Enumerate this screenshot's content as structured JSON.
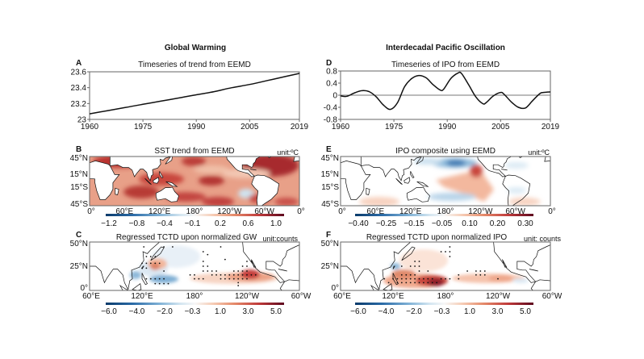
{
  "figure": {
    "column_titles": [
      "Global Warming",
      "Interdecadal Pacific Oscillation"
    ]
  },
  "chart_data": [
    {
      "id": "A",
      "type": "line",
      "panel_label": "A",
      "title": "Timeseries of trend from EEMD",
      "xlabel": "",
      "ylabel": "",
      "xlim": [
        1960,
        2019
      ],
      "ylim": [
        23.0,
        23.6
      ],
      "xticks": [
        1960,
        1975,
        1990,
        2005,
        2019
      ],
      "yticks": [
        "23",
        "23.2",
        "23.4",
        "23.6"
      ],
      "ytick_values": [
        23.0,
        23.2,
        23.4,
        23.6
      ],
      "grid": false,
      "series": [
        {
          "name": "trend",
          "x": [
            1960,
            1965,
            1970,
            1975,
            1980,
            1985,
            1990,
            1995,
            2000,
            2005,
            2010,
            2015,
            2019
          ],
          "values": [
            23.07,
            23.11,
            23.15,
            23.19,
            23.23,
            23.27,
            23.31,
            23.35,
            23.4,
            23.44,
            23.49,
            23.54,
            23.58
          ]
        }
      ]
    },
    {
      "id": "D",
      "type": "line",
      "panel_label": "D",
      "title": "Timeseries of IPO from EEMD",
      "xlabel": "",
      "ylabel": "",
      "xlim": [
        1960,
        2019
      ],
      "ylim": [
        -0.8,
        0.8
      ],
      "xticks": [
        1960,
        1975,
        1990,
        2005,
        2019
      ],
      "yticks": [
        "0.8",
        "0.4",
        "0",
        "-0.4",
        "-0.8"
      ],
      "ytick_values": [
        0.8,
        0.4,
        0,
        -0.4,
        -0.8
      ],
      "zero_line": true,
      "grid": false,
      "series": [
        {
          "name": "IPO",
          "x": [
            1960,
            1961,
            1962,
            1964,
            1966,
            1968,
            1970,
            1972,
            1974,
            1976,
            1978,
            1980,
            1982,
            1984,
            1986,
            1988,
            1989,
            1991,
            1993,
            1994,
            1996,
            1998,
            2000,
            2001,
            2003,
            2005,
            2006,
            2008,
            2010,
            2012,
            2014,
            2016,
            2017,
            2019
          ],
          "values": [
            -0.02,
            -0.04,
            -0.03,
            0.08,
            0.15,
            0.12,
            -0.05,
            -0.32,
            -0.47,
            -0.25,
            0.28,
            0.55,
            0.65,
            0.58,
            0.35,
            0.17,
            0.2,
            0.55,
            0.73,
            0.72,
            0.35,
            -0.05,
            -0.28,
            -0.24,
            -0.02,
            0.09,
            0.03,
            -0.22,
            -0.4,
            -0.42,
            -0.18,
            0.05,
            0.09,
            0.11
          ]
        }
      ]
    },
    {
      "id": "B",
      "type": "heatmap",
      "panel_label": "B",
      "title": "SST trend from EEMD",
      "unit": "unit:ºC",
      "xticks": [
        "0°",
        "60°E",
        "120°E",
        "180°",
        "120°W",
        "60°W",
        "0°"
      ],
      "yticks": [
        "45°N",
        "15°N",
        "15°S",
        "45°S"
      ],
      "colorbar_ticks": [
        "−1.2",
        "−0.8",
        "−0.4",
        "−0.1",
        "0.2",
        "0.6",
        "1.0"
      ],
      "colorbar_range": [
        -1.2,
        1.2
      ],
      "description": "Global SST warming trend, predominantly positive (red) everywhere, strongest in NW Pacific, North Atlantic, Indian Ocean; slight negative patch in SE Pacific."
    },
    {
      "id": "E",
      "type": "heatmap",
      "panel_label": "E",
      "title": "IPO composite using EEMD",
      "unit": "unit:ºC",
      "xticks": [
        "0°",
        "60°E",
        "120°E",
        "180°",
        "120°W",
        "60°W",
        "0°"
      ],
      "yticks": [
        "45°N",
        "15°N",
        "15°S",
        "45°S"
      ],
      "colorbar_ticks": [
        "−0.40",
        "−0.25",
        "−0.15",
        "−0.05",
        "0.10",
        "0.20",
        "0.30"
      ],
      "colorbar_range": [
        -0.45,
        0.35
      ],
      "description": "IPO horseshoe pattern: warm tropical eastern Pacific wedge, cool North and South Pacific lobes."
    },
    {
      "id": "C",
      "type": "heatmap",
      "panel_label": "C",
      "title": "Regressed TCTD upon normalized GW",
      "unit": "unit:counts",
      "xticks": [
        "60°E",
        "120°E",
        "180°",
        "120°W",
        "60°W"
      ],
      "yticks": [
        "50°N",
        "25°N",
        "0°"
      ],
      "colorbar_ticks": [
        "−6.0",
        "−4.0",
        "−2.0",
        "−0.3",
        "1.0",
        "3.0",
        "5.0"
      ],
      "colorbar_range": [
        -6.5,
        6.0
      ],
      "description": "TC track density regression on GW: positive off Mexico (eastern Pacific) and near Taiwan/East China Sea; negative in South China Sea and western Pacific near 10°N; dots mark significance."
    },
    {
      "id": "F",
      "type": "heatmap",
      "panel_label": "F",
      "title": "Regressed TCTD upon normalized IPO",
      "unit": "unit: counts",
      "xticks": [
        "60°E",
        "120°E",
        "180°",
        "120°W",
        "60°W"
      ],
      "yticks": [
        "50°N",
        "25°N",
        "0°"
      ],
      "colorbar_ticks": [
        "−6.0",
        "−4.0",
        "−2.0",
        "−0.3",
        "1.0",
        "3.0",
        "5.0"
      ],
      "colorbar_range": [
        -6.5,
        6.0
      ],
      "description": "TC track density regression on IPO: strong positive in western North Pacific near 140–150°E, 10°N; weaker positive band across central/eastern Pacific; small negative near Taiwan."
    }
  ]
}
